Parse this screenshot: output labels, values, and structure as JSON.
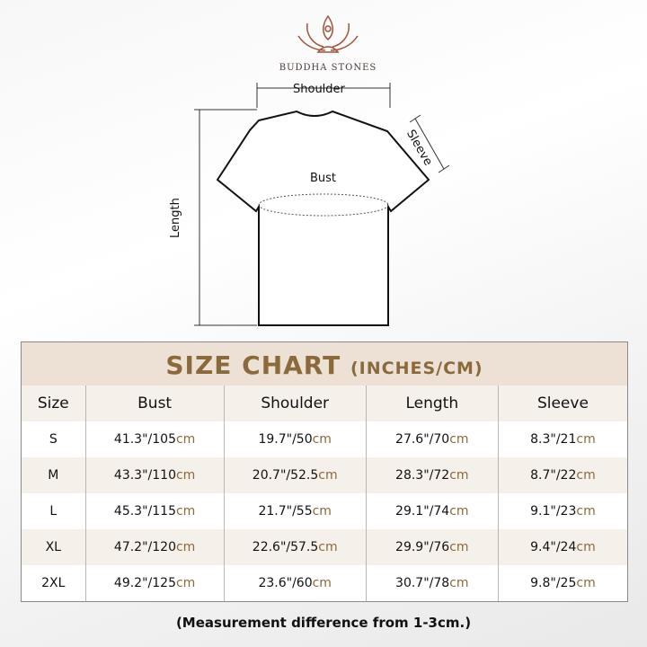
{
  "brand": "BUDDHA STONES",
  "diagram": {
    "shoulder": "Shoulder",
    "sleeve": "Sleeve",
    "bust": "Bust",
    "length": "Length"
  },
  "table": {
    "title": "SIZE CHART",
    "unit": "(INCHES/CM)",
    "headers": [
      "Size",
      "Bust",
      "Shoulder",
      "Length",
      "Sleeve"
    ],
    "rows": [
      {
        "size": "S",
        "cells": [
          [
            "41.3\"/105",
            "cm"
          ],
          [
            "19.7\"/50",
            "cm"
          ],
          [
            "27.6\"/70",
            "cm"
          ],
          [
            "8.3\"/21",
            "cm"
          ]
        ]
      },
      {
        "size": "M",
        "cells": [
          [
            "43.3\"/110",
            "cm"
          ],
          [
            "20.7\"/52.5",
            "cm"
          ],
          [
            "28.3\"/72",
            "cm"
          ],
          [
            "8.7\"/22",
            "cm"
          ]
        ]
      },
      {
        "size": "L",
        "cells": [
          [
            "45.3\"/115",
            "cm"
          ],
          [
            "21.7\"/55",
            "cm"
          ],
          [
            "29.1\"/74",
            "cm"
          ],
          [
            "9.1\"/23",
            "cm"
          ]
        ]
      },
      {
        "size": "XL",
        "cells": [
          [
            "47.2\"/120",
            "cm"
          ],
          [
            "22.6\"/57.5",
            "cm"
          ],
          [
            "29.9\"/76",
            "cm"
          ],
          [
            "9.4\"/24",
            "cm"
          ]
        ]
      },
      {
        "size": "2XL",
        "cells": [
          [
            "49.2\"/125",
            "cm"
          ],
          [
            "23.6\"/60",
            "cm"
          ],
          [
            "30.7\"/78",
            "cm"
          ],
          [
            "9.8\"/25",
            "cm"
          ]
        ]
      }
    ]
  },
  "note": "(Measurement difference from 1-3cm.)",
  "colors": {
    "accent": "#8a6a3b",
    "band": "#ece1d4",
    "logo": "#a0523a"
  }
}
